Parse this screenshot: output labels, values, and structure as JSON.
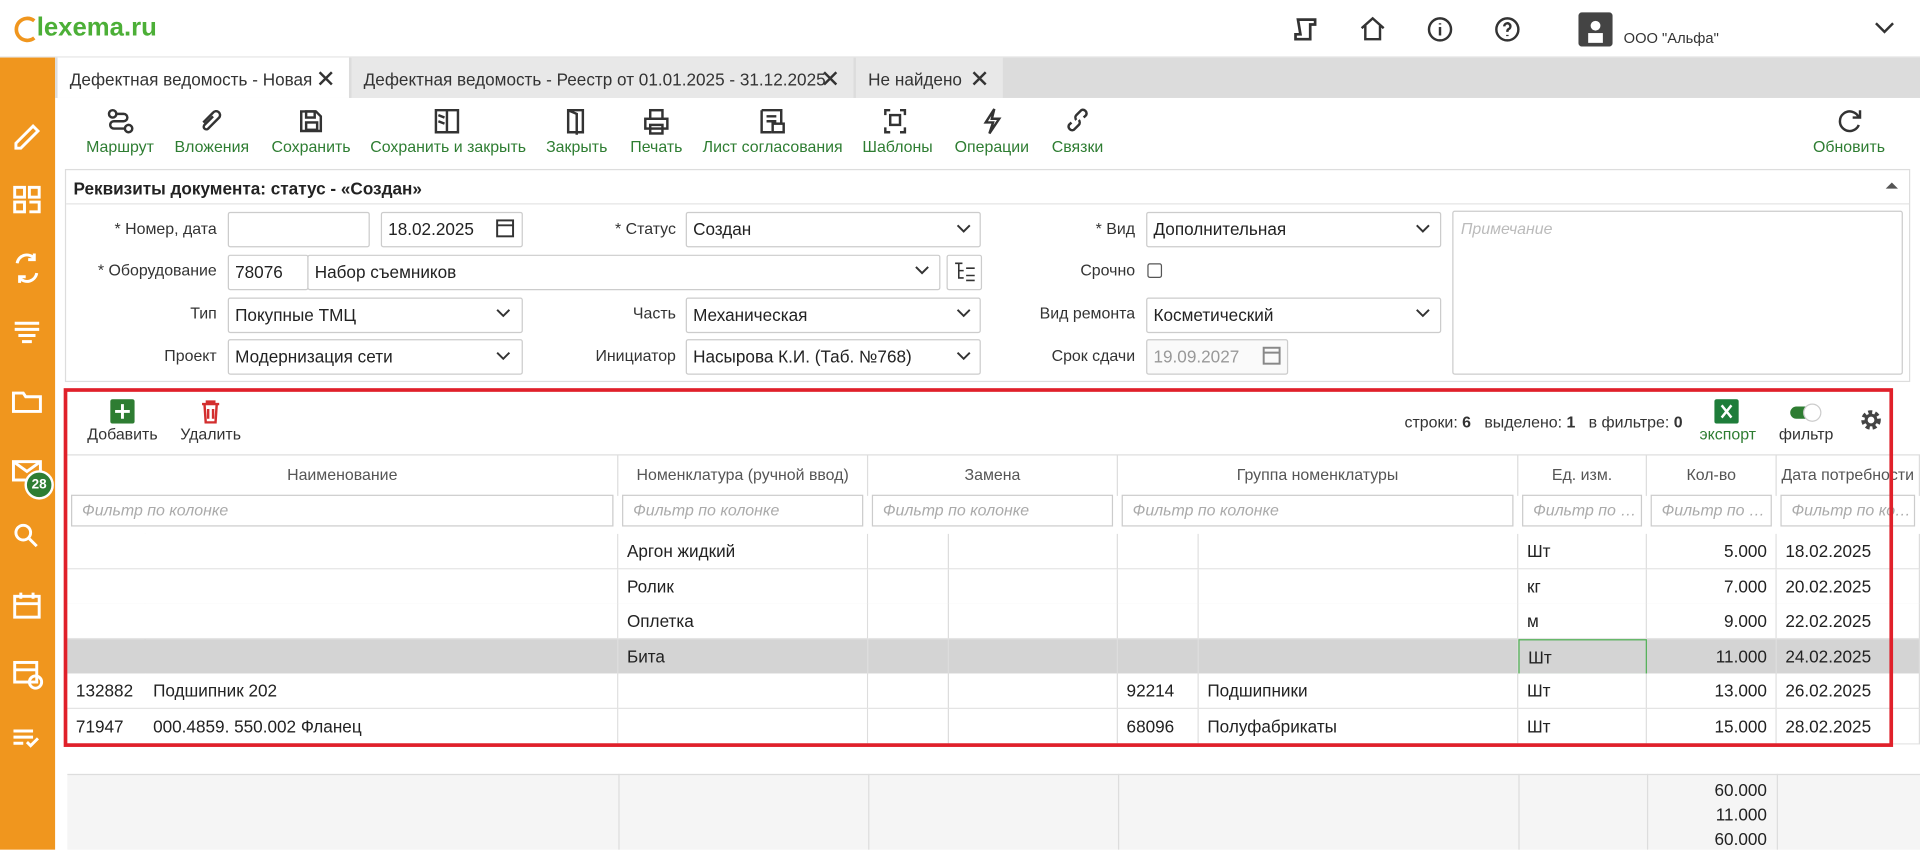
{
  "header": {
    "logo": "lexema.ru",
    "user": "ООО \"Альфа\""
  },
  "sidebar": {
    "badge": "28"
  },
  "tabs": [
    "Дефектная ведомость - Новая",
    "Дефектная ведомость - Реестр от 01.01.2025 - 31.12.2025",
    "Не найдено"
  ],
  "toolbar": [
    "Маршрут",
    "Вложения",
    "Сохранить",
    "Сохранить и закрыть",
    "Закрыть",
    "Печать",
    "Лист согласования",
    "Шаблоны",
    "Операции",
    "Связки",
    "Обновить"
  ],
  "form": {
    "title": "Реквизиты документа: статус - «Создан»",
    "number_label": "* Номер, дата",
    "date": "18.02.2025",
    "status_label": "* Статус",
    "status": "Создан",
    "kind_label": "* Вид",
    "kind": "Дополнительная",
    "equipment_label": "* Оборудование",
    "equipment_code": "78076",
    "equipment_name": "Набор съемников",
    "urgent_label": "Срочно",
    "type_label": "Тип",
    "type": "Покупные ТМЦ",
    "part_label": "Часть",
    "part": "Механическая",
    "repair_label": "Вид ремонта",
    "repair": "Косметический",
    "project_label": "Проект",
    "project": "Модернизация сети",
    "initiator_label": "Инициатор",
    "initiator": "Насырова К.И. (Таб. №768)",
    "deadline_label": "Срок сдачи",
    "deadline": "19.09.2027",
    "note_placeholder": "Примечание"
  },
  "grid": {
    "add": "Добавить",
    "delete": "Удалить",
    "rows_label": "строки:",
    "rows_count": "6",
    "selected_label": "выделено:",
    "selected_count": "1",
    "filtered_label": "в фильтре:",
    "filtered_count": "0",
    "export": "экспорт",
    "filter": "фильтр",
    "columns": [
      "Наименование",
      "Номенклатура (ручной ввод)",
      "Замена",
      "Группа номенклатуры",
      "Ед. изм.",
      "Кол-во",
      "Дата потребности"
    ],
    "filter_placeholder": "Фильтр по колонке",
    "rows": [
      {
        "code": null,
        "name": null,
        "manual": "Аргон жидкий",
        "group_code": null,
        "group_name": null,
        "unit": "Шт",
        "qty": "5.000",
        "date": "18.02.2025"
      },
      {
        "code": null,
        "name": null,
        "manual": "Ролик",
        "group_code": null,
        "group_name": null,
        "unit": "кг",
        "qty": "7.000",
        "date": "20.02.2025"
      },
      {
        "code": null,
        "name": null,
        "manual": "Оплетка",
        "group_code": null,
        "group_name": null,
        "unit": "м",
        "qty": "9.000",
        "date": "22.02.2025"
      },
      {
        "code": null,
        "name": null,
        "manual": "Бита",
        "group_code": null,
        "group_name": null,
        "unit": "Шт",
        "qty": "11.000",
        "date": "24.02.2025"
      },
      {
        "code": "132882",
        "name": "Подшипник 202",
        "manual": null,
        "group_code": "92214",
        "group_name": "Подшипники",
        "unit": "Шт",
        "qty": "13.000",
        "date": "26.02.2025"
      },
      {
        "code": "71947",
        "name": "000.4859. 550.002 Фланец",
        "manual": null,
        "group_code": "68096",
        "group_name": "Полуфабрикаты",
        "unit": "Шт",
        "qty": "15.000",
        "date": "28.02.2025"
      }
    ],
    "totals": [
      "60.000",
      "11.000",
      "60.000"
    ]
  }
}
